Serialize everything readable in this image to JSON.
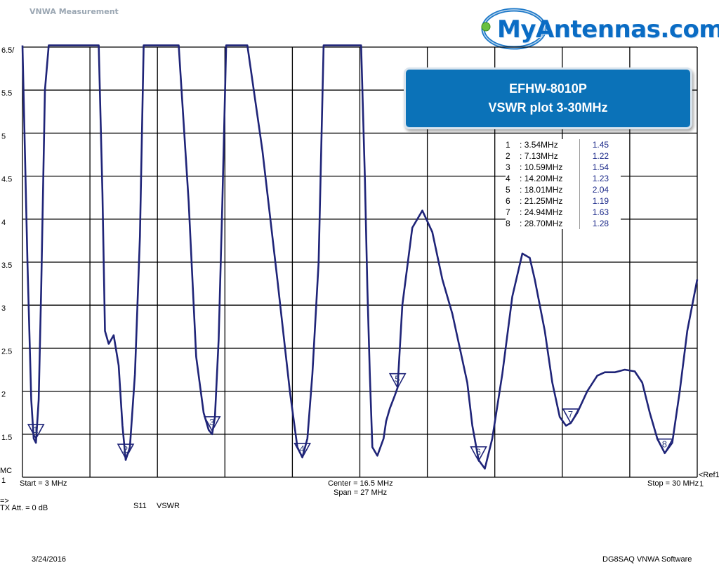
{
  "app": {
    "title": "VNWA Measurement"
  },
  "logo": {
    "text": "MyAntennas.com"
  },
  "info_box": {
    "line1": "EFHW-8010P",
    "line2": "VSWR plot 3-30MHz"
  },
  "colors": {
    "trace": "#1f2478",
    "grid": "#000000",
    "box": "#0b72b8",
    "logo": "#0a6cc4"
  },
  "footer": {
    "start": "Start = 3 MHz",
    "center": "Center = 16.5 MHz",
    "span": "Span = 27 MHz",
    "stop": "Stop = 30 MHz",
    "ref": "<Ref1",
    "ref_num": "1",
    "arrow": "=>",
    "tx_att": "TX Att.  = 0 dB",
    "s11": "S11",
    "vswr": "VSWR",
    "mc": "MC",
    "date": "3/24/2016",
    "software": "DG8SAQ VNWA Software"
  },
  "chart_data": {
    "type": "line",
    "xlim": [
      3,
      30
    ],
    "ylim": [
      1,
      6
    ],
    "grid": true,
    "y_tick_labels": [
      "1",
      "1.5",
      "2",
      "2.5",
      "3",
      "3.5",
      "4",
      "4.5",
      "5",
      "5.5",
      "6.5/"
    ],
    "y_tick_values": [
      1,
      1.5,
      2,
      2.5,
      3,
      3.5,
      4,
      4.5,
      5,
      5.5,
      6
    ],
    "series": [
      {
        "x": [
          3.0,
          3.2,
          3.35,
          3.45,
          3.54,
          3.65,
          3.75,
          3.9,
          4.05,
          6.05,
          6.2,
          6.3,
          6.45,
          6.65,
          6.85,
          7.0,
          7.13,
          7.3,
          7.5,
          7.7,
          7.85,
          9.25,
          9.65,
          9.95,
          10.25,
          10.45,
          10.59,
          10.7,
          10.85,
          11.0,
          11.15,
          12.0,
          12.6,
          13.2,
          13.7,
          14.0,
          14.2,
          14.4,
          14.6,
          14.85,
          15.05,
          16.55,
          16.7,
          16.8,
          16.9,
          17.0,
          17.2,
          17.45,
          17.55,
          17.7,
          17.9,
          18.01,
          18.2,
          18.6,
          19.0,
          19.4,
          19.8,
          20.2,
          20.5,
          20.8,
          21.0,
          21.25,
          21.5,
          21.8,
          22.2,
          22.6,
          23.0,
          23.3,
          23.5,
          23.9,
          24.2,
          24.5,
          24.75,
          24.94,
          25.2,
          25.6,
          26.0,
          26.3,
          26.7,
          27.1,
          27.5,
          27.8,
          28.1,
          28.4,
          28.7,
          29.0,
          29.3,
          29.6,
          30.0
        ],
        "y": [
          6.2,
          3.5,
          1.9,
          1.45,
          1.4,
          1.9,
          3.2,
          5.5,
          6.2,
          6.2,
          4.3,
          2.7,
          2.55,
          2.65,
          2.3,
          1.6,
          1.2,
          1.35,
          2.2,
          3.8,
          6.2,
          6.2,
          4.2,
          2.4,
          1.75,
          1.55,
          1.5,
          1.7,
          2.6,
          4.2,
          6.2,
          6.2,
          4.8,
          3.3,
          2.0,
          1.35,
          1.23,
          1.45,
          2.2,
          3.5,
          6.2,
          6.2,
          4.5,
          3.2,
          2.2,
          1.35,
          1.25,
          1.45,
          1.65,
          1.8,
          1.95,
          2.04,
          3.0,
          3.9,
          4.1,
          3.85,
          3.3,
          2.9,
          2.5,
          2.1,
          1.6,
          1.2,
          1.1,
          1.45,
          2.2,
          3.1,
          3.6,
          3.55,
          3.3,
          2.7,
          2.1,
          1.7,
          1.6,
          1.63,
          1.75,
          2.0,
          2.18,
          2.22,
          2.22,
          2.25,
          2.23,
          2.1,
          1.75,
          1.45,
          1.28,
          1.4,
          2.0,
          2.7,
          3.3
        ]
      }
    ],
    "markers": [
      {
        "label": "1",
        "freq_text": "3.54MHz",
        "value_text": "1.45",
        "x": 3.54,
        "y": 1.45
      },
      {
        "label": "2",
        "freq_text": "7.13MHz",
        "value_text": "1.22",
        "x": 7.13,
        "y": 1.22
      },
      {
        "label": "3",
        "freq_text": "10.59MHz",
        "value_text": "1.54",
        "x": 10.59,
        "y": 1.54
      },
      {
        "label": "4",
        "freq_text": "14.20MHz",
        "value_text": "1.23",
        "x": 14.2,
        "y": 1.23
      },
      {
        "label": "5",
        "freq_text": "18.01MHz",
        "value_text": "2.04",
        "x": 18.01,
        "y": 2.04
      },
      {
        "label": "6",
        "freq_text": "21.25MHz",
        "value_text": "1.19",
        "x": 21.25,
        "y": 1.19
      },
      {
        "label": "7",
        "freq_text": "24.94MHz",
        "value_text": "1.63",
        "x": 24.94,
        "y": 1.63
      },
      {
        "label": "8",
        "freq_text": "28.70MHz",
        "value_text": "1.28",
        "x": 28.7,
        "y": 1.28
      }
    ]
  }
}
